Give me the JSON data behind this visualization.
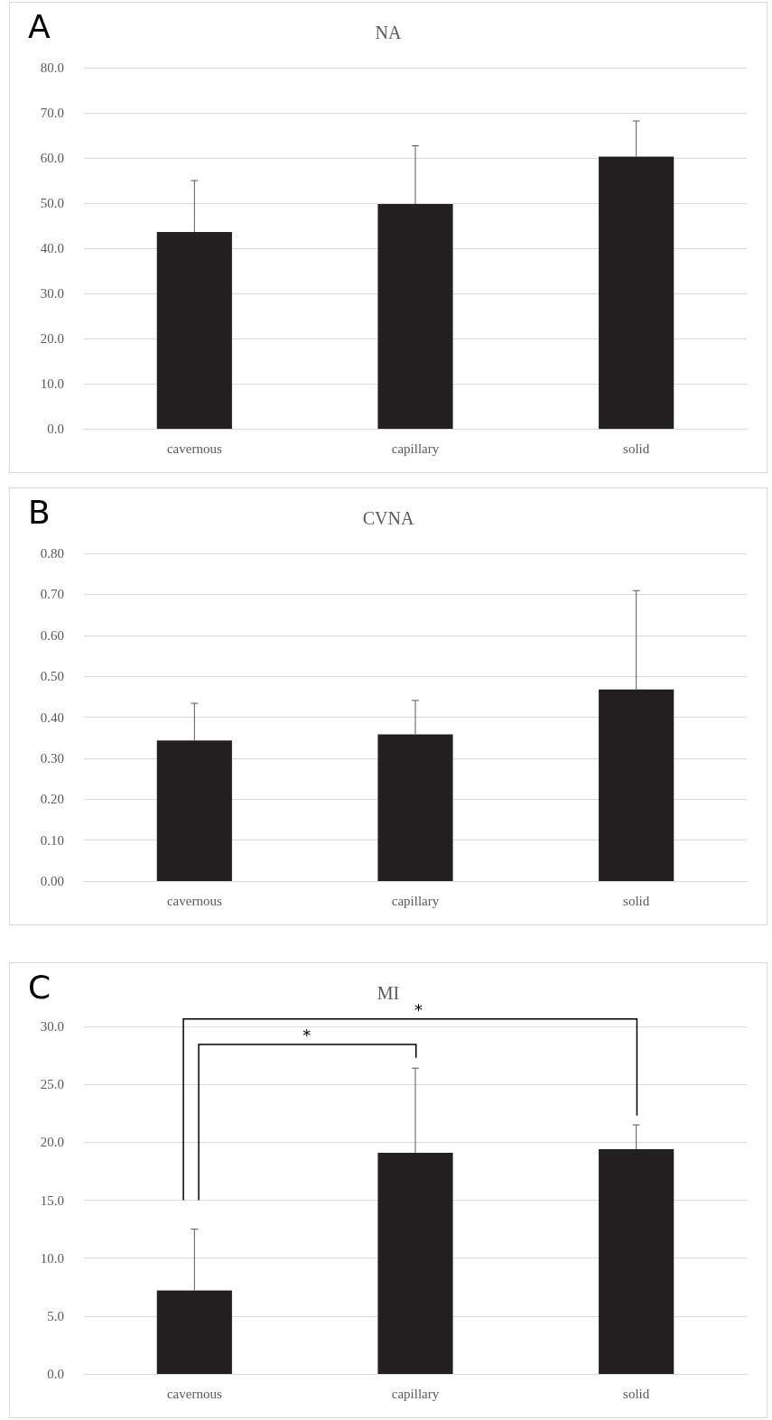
{
  "chart_data": [
    {
      "type": "bar",
      "title": "NA",
      "annotations": [
        "A"
      ],
      "categories": [
        "cavernous",
        "capillary",
        "solid"
      ],
      "values": [
        43.6,
        49.8,
        60.3
      ],
      "color": "#231f20",
      "errors": [
        [
          43.6,
          55.0
        ],
        [
          49.8,
          62.7
        ],
        [
          60.3,
          68.2
        ]
      ],
      "ylim": [
        0,
        80
      ],
      "yticks": [
        {
          "value": 0,
          "label": "0.0"
        },
        {
          "value": 10,
          "label": "10.0"
        },
        {
          "value": 20,
          "label": "20.0"
        },
        {
          "value": 30,
          "label": "30.0"
        },
        {
          "value": 40,
          "label": "40.0"
        },
        {
          "value": 50,
          "label": "50.0"
        },
        {
          "value": 60,
          "label": "60.0"
        },
        {
          "value": 70,
          "label": "70.0"
        },
        {
          "value": 80,
          "label": "80.0"
        }
      ],
      "grid": "y"
    },
    {
      "type": "bar",
      "title": "CVNA",
      "annotations": [
        "B"
      ],
      "categories": [
        "cavernous",
        "capillary",
        "solid"
      ],
      "values": [
        0.343,
        0.358,
        0.468
      ],
      "color": "#231f20",
      "errors": [
        [
          0.343,
          0.434
        ],
        [
          0.358,
          0.441
        ],
        [
          0.468,
          0.709
        ]
      ],
      "ylim": [
        0,
        0.8
      ],
      "yticks": [
        {
          "value": 0,
          "label": "0.00"
        },
        {
          "value": 0.1,
          "label": "0.10"
        },
        {
          "value": 0.2,
          "label": "0.20"
        },
        {
          "value": 0.3,
          "label": "0.30"
        },
        {
          "value": 0.4,
          "label": "0.40"
        },
        {
          "value": 0.5,
          "label": "0.50"
        },
        {
          "value": 0.6,
          "label": "0.60"
        },
        {
          "value": 0.7,
          "label": "0.70"
        },
        {
          "value": 0.8,
          "label": "0.80"
        }
      ],
      "grid": "y"
    },
    {
      "type": "bar",
      "title": "MI",
      "annotations": [
        "C",
        "*",
        "*"
      ],
      "categories": [
        "cavernous",
        "capillary",
        "solid"
      ],
      "values": [
        7.2,
        19.1,
        19.4
      ],
      "color": "#231f20",
      "errors": [
        [
          7.2,
          12.5
        ],
        [
          19.1,
          26.4
        ],
        [
          19.4,
          21.5
        ]
      ],
      "ylim": [
        0,
        30
      ],
      "yticks": [
        {
          "value": 0,
          "label": "0.0"
        },
        {
          "value": 5,
          "label": "5.0"
        },
        {
          "value": 10,
          "label": "10.0"
        },
        {
          "value": 15,
          "label": "15.0"
        },
        {
          "value": 20,
          "label": "20.0"
        },
        {
          "value": 25,
          "label": "25.0"
        },
        {
          "value": 30,
          "label": "30.0"
        }
      ],
      "grid": "y"
    }
  ]
}
